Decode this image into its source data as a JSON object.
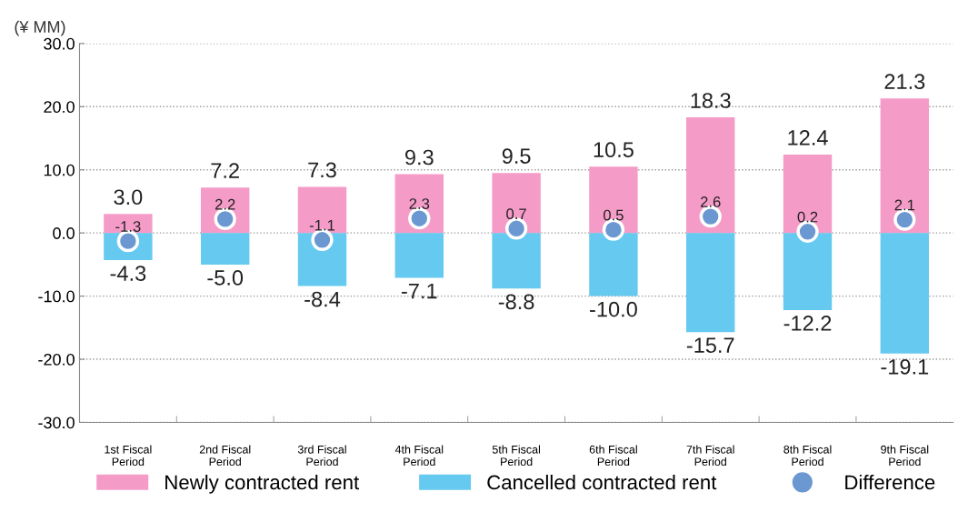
{
  "chart_data": {
    "type": "bar",
    "stacked": true,
    "ylabel": "(¥ MM)",
    "categories": [
      "1st Fiscal\nPeriod",
      "2nd Fiscal\nPeriod",
      "3rd Fiscal\nPeriod",
      "4th Fiscal\nPeriod",
      "5th Fiscal\nPeriod",
      "6th Fiscal\nPeriod",
      "7th Fiscal\nPeriod",
      "8th Fiscal\nPeriod",
      "9th Fiscal\nPeriod"
    ],
    "series": [
      {
        "name": "Newly contracted rent",
        "color": "#f59bc8",
        "values": [
          3.0,
          7.2,
          7.3,
          9.3,
          9.5,
          10.5,
          18.3,
          12.4,
          21.3
        ],
        "value_labels": [
          "3.0",
          "7.2",
          "7.3",
          "9.3",
          "9.5",
          "10.5",
          "18.3",
          "12.4",
          "21.3"
        ]
      },
      {
        "name": "Cancelled contracted rent",
        "color": "#66c9f0",
        "values": [
          -4.3,
          -5.0,
          -8.4,
          -7.1,
          -8.8,
          -10.0,
          -15.7,
          -12.2,
          -19.1
        ],
        "value_labels": [
          "-4.3",
          "-5.0",
          "-8.4",
          "-7.1",
          "-8.8",
          "-10.0",
          "-15.7",
          "-12.2",
          "-19.1"
        ]
      },
      {
        "name": "Difference",
        "type": "scatter",
        "color": "#6b98d0",
        "values": [
          -1.3,
          2.2,
          -1.1,
          2.3,
          0.7,
          0.5,
          2.6,
          0.2,
          2.1
        ],
        "value_labels": [
          "-1.3",
          "2.2",
          "-1.1",
          "2.3",
          "0.7",
          "0.5",
          "2.6",
          "0.2",
          "2.1"
        ]
      }
    ],
    "ylim": [
      -30,
      30
    ],
    "yticks": [
      {
        "value": -30,
        "label": "-30.0"
      },
      {
        "value": -20,
        "label": "-20.0"
      },
      {
        "value": -10,
        "label": "-10.0"
      },
      {
        "value": 0,
        "label": "0.0"
      },
      {
        "value": 10,
        "label": "10.0"
      },
      {
        "value": 20,
        "label": "20.0"
      },
      {
        "value": 30,
        "label": "30.0"
      }
    ],
    "grid": "y",
    "legend": "bottom",
    "marker": "circle"
  }
}
